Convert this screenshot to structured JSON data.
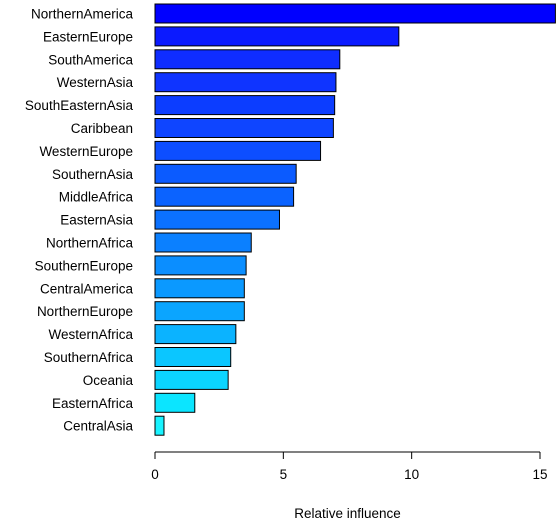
{
  "chart_data": {
    "type": "bar",
    "orientation": "horizontal",
    "title": "",
    "xlabel": "Relative influence",
    "ylabel": "",
    "xlim": [
      0,
      15
    ],
    "x_ticks": [
      0,
      5,
      10,
      15
    ],
    "grid": false,
    "legend": "none",
    "categories": [
      "NorthernAmerica",
      "EasternEurope",
      "SouthAmerica",
      "WesternAsia",
      "SouthEasternAsia",
      "Caribbean",
      "WesternEurope",
      "SouthernAsia",
      "MiddleAfrica",
      "EasternAsia",
      "NorthernAfrica",
      "SouthernEurope",
      "CentralAmerica",
      "NorthernEurope",
      "WesternAfrica",
      "SouthernAfrica",
      "Oceania",
      "EasternAfrica",
      "CentralAsia"
    ],
    "values": [
      15.6,
      9.5,
      7.2,
      7.05,
      7.0,
      6.95,
      6.45,
      5.5,
      5.4,
      4.85,
      3.75,
      3.55,
      3.48,
      3.48,
      3.15,
      2.95,
      2.85,
      1.55,
      0.35
    ],
    "colors": [
      "#0000ff",
      "#0b1aff",
      "#0f2dff",
      "#0f34ff",
      "#0c3dff",
      "#0f45ff",
      "#0d4eff",
      "#0b5bff",
      "#0b63ff",
      "#0b71ff",
      "#0b80ff",
      "#0b8eff",
      "#0b99ff",
      "#0ba5ff",
      "#0bb3ff",
      "#0bc6ff",
      "#0bd4ff",
      "#0be5ff",
      "#19f3ff"
    ]
  }
}
